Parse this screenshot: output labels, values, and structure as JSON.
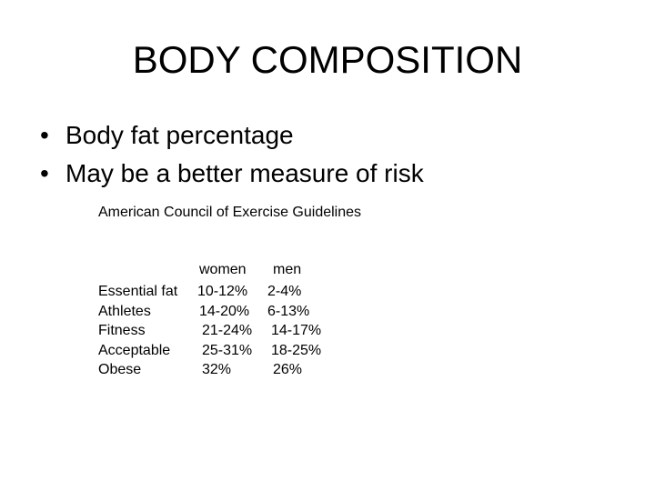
{
  "title": "BODY COMPOSITION",
  "bullets": [
    "Body fat percentage",
    "May be a better measure of risk"
  ],
  "subheading": "American Council of Exercise Guidelines",
  "table": {
    "headers": {
      "women": "women",
      "men": "men"
    },
    "rows": [
      {
        "label": "Essential fat",
        "women": "10-12%",
        "men": "2-4%"
      },
      {
        "label": "Athletes",
        "women": "14-20%",
        "men": "6-13%"
      },
      {
        "label": "Fitness",
        "women": "21-24%",
        "men": "14-17%"
      },
      {
        "label": "Acceptable",
        "women": "25-31%",
        "men": "18-25%"
      },
      {
        "label": "Obese",
        "women": "32%",
        "men": "26%"
      }
    ]
  }
}
